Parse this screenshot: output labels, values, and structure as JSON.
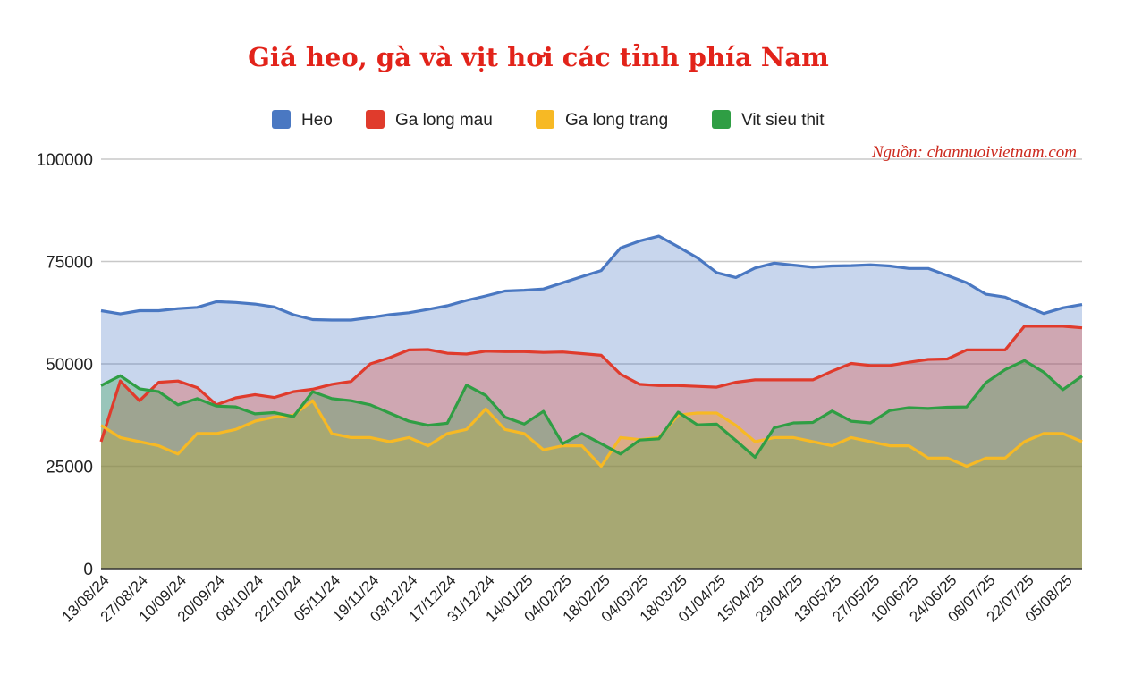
{
  "colors": {
    "title": "#e2231a",
    "source": "#cc2a1f",
    "grid": "#c8c8c8",
    "axis": "#333333",
    "Heo": "#4a78c2",
    "Ga long mau": "#e03b2c",
    "Ga long trang": "#f7b924",
    "Vit sieu thit": "#2f9e44"
  },
  "chart_data": {
    "type": "area",
    "title": "Giá heo, gà và vịt hơi các tỉnh phía Nam",
    "source": "Nguồn: channuoivietnam.com",
    "legend_position": "top",
    "grid": true,
    "ylim": [
      0,
      100000
    ],
    "yticks": [
      "0",
      "25000",
      "50000",
      "75000",
      "100000"
    ],
    "x_tick_labels": [
      "13/08/24",
      "27/08/24",
      "10/09/24",
      "20/09/24",
      "08/10/24",
      "22/10/24",
      "05/11/24",
      "19/11/24",
      "03/12/24",
      "17/12/24",
      "31/12/24",
      "14/01/25",
      "04/02/25",
      "18/02/25",
      "04/03/25",
      "18/03/25",
      "01/04/25",
      "15/04/25",
      "29/04/25",
      "13/05/25",
      "27/05/25",
      "10/06/25",
      "24/06/25",
      "08/07/25",
      "22/07/25",
      "05/08/25"
    ],
    "series": [
      {
        "name": "Heo",
        "values": [
          63000,
          62200,
          63000,
          63000,
          63500,
          63800,
          65200,
          65000,
          64600,
          63900,
          62000,
          60800,
          60700,
          60700,
          61300,
          62000,
          62500,
          63300,
          64200,
          65500,
          66600,
          67800,
          68000,
          68300,
          69800,
          71300,
          72800,
          78300,
          80000,
          81200,
          78600,
          75900,
          72300,
          71100,
          73400,
          74600,
          74100,
          73600,
          73900,
          74000,
          74200,
          73900,
          73300,
          73300,
          71600,
          69800,
          67000,
          66300,
          64300,
          62300,
          63700,
          64500
        ]
      },
      {
        "name": "Ga long mau",
        "values": [
          31000,
          45800,
          41000,
          45500,
          45800,
          44200,
          40000,
          41700,
          42500,
          41800,
          43200,
          43800,
          45000,
          45700,
          50000,
          51500,
          53400,
          53500,
          52600,
          52400,
          53100,
          53000,
          53000,
          52800,
          52900,
          52500,
          52100,
          47500,
          45000,
          44700,
          44700,
          44500,
          44300,
          45500,
          46100,
          46100,
          46100,
          46100,
          48200,
          50100,
          49600,
          49600,
          50400,
          51100,
          51200,
          53400,
          53400,
          53400,
          59200,
          59200,
          59200,
          58800
        ]
      },
      {
        "name": "Ga long trang",
        "values": [
          35000,
          32000,
          31000,
          30000,
          28000,
          33000,
          33000,
          34000,
          36000,
          37000,
          37500,
          41000,
          33000,
          32000,
          32000,
          31000,
          32000,
          30000,
          33000,
          34000,
          39000,
          34000,
          33000,
          29000,
          30000,
          30000,
          25000,
          32000,
          31500,
          32000,
          37500,
          38000,
          38000,
          35000,
          31000,
          32000,
          32000,
          31000,
          30000,
          32000,
          31000,
          30000,
          30000,
          27000,
          27000,
          25000,
          27000,
          27000,
          31000,
          33000,
          33000,
          31000
        ]
      },
      {
        "name": "Vit sieu thit",
        "values": [
          44700,
          47100,
          43900,
          43200,
          40000,
          41500,
          39700,
          39500,
          37800,
          38100,
          37100,
          43200,
          41500,
          41000,
          40000,
          38000,
          36000,
          35000,
          35500,
          44800,
          42300,
          37000,
          35300,
          38400,
          30500,
          33000,
          30500,
          28000,
          31400,
          31700,
          38200,
          35100,
          35300,
          31300,
          27200,
          34400,
          35600,
          35700,
          38500,
          36000,
          35600,
          38600,
          39300,
          39100,
          39400,
          39500,
          45400,
          48600,
          50800,
          48000,
          43700,
          47000
        ]
      }
    ]
  }
}
